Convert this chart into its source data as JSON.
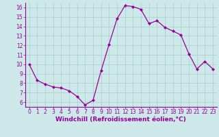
{
  "x": [
    0,
    1,
    2,
    3,
    4,
    5,
    6,
    7,
    8,
    9,
    10,
    11,
    12,
    13,
    14,
    15,
    16,
    17,
    18,
    19,
    20,
    21,
    22,
    23
  ],
  "y": [
    10.0,
    8.3,
    7.9,
    7.6,
    7.5,
    7.2,
    6.6,
    5.7,
    6.2,
    9.3,
    12.1,
    14.8,
    16.2,
    16.1,
    15.8,
    14.3,
    14.6,
    13.9,
    13.5,
    13.1,
    11.1,
    9.5,
    10.3,
    9.5
  ],
  "xlim": [
    -0.5,
    23.5
  ],
  "ylim": [
    5.5,
    16.5
  ],
  "yticks": [
    6,
    7,
    8,
    9,
    10,
    11,
    12,
    13,
    14,
    15,
    16
  ],
  "xticks": [
    0,
    1,
    2,
    3,
    4,
    5,
    6,
    7,
    8,
    9,
    10,
    11,
    12,
    13,
    14,
    15,
    16,
    17,
    18,
    19,
    20,
    21,
    22,
    23
  ],
  "xlabel": "Windchill (Refroidissement éolien,°C)",
  "line_color": "#990099",
  "marker": "D",
  "marker_size": 2.0,
  "bg_color": "#cce8e8",
  "grid_color": "#aacccc",
  "tick_label_color": "#990099",
  "axis_label_color": "#990099",
  "tick_fontsize": 5.5,
  "xlabel_fontsize": 6.5,
  "spine_color": "#990099"
}
